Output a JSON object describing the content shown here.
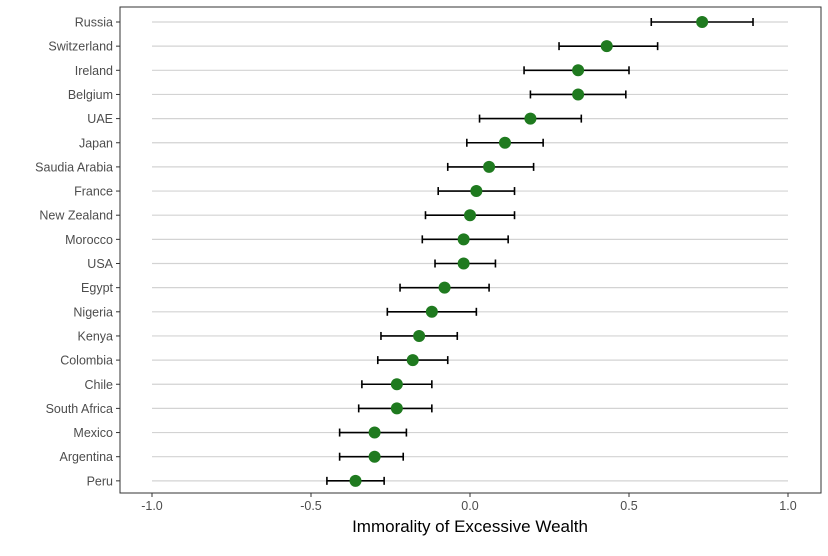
{
  "chart_data": {
    "type": "dot-errorbar",
    "title": "",
    "xlabel": "Immorality of Excessive Wealth",
    "ylabel": "",
    "xlim": [
      -1.1,
      1.07
    ],
    "x_ticks": [
      -1.0,
      -0.5,
      0.0,
      0.5,
      1.0
    ],
    "x_tick_labels": [
      "-1.0",
      "-0.5",
      "0.0",
      "0.5",
      "1.0"
    ],
    "grid": "horizontal major lines",
    "legend": "none",
    "point_color": "#1f7a1f",
    "errorbar_color": "#000000",
    "grid_color": "#d3d3d3",
    "categories": [
      "Russia",
      "Switzerland",
      "Ireland",
      "Belgium",
      "UAE",
      "Japan",
      "Saudia Arabia",
      "France",
      "New Zealand",
      "Morocco",
      "USA",
      "Egypt",
      "Nigeria",
      "Kenya",
      "Colombia",
      "Chile",
      "South Africa",
      "Mexico",
      "Argentina",
      "Peru"
    ],
    "values": [
      0.73,
      0.43,
      0.34,
      0.34,
      0.19,
      0.11,
      0.06,
      0.02,
      0.0,
      -0.02,
      -0.02,
      -0.08,
      -0.12,
      -0.16,
      -0.18,
      -0.23,
      -0.23,
      -0.3,
      -0.3,
      -0.36
    ],
    "lower": [
      0.57,
      0.28,
      0.17,
      0.19,
      0.03,
      -0.01,
      -0.07,
      -0.1,
      -0.14,
      -0.15,
      -0.11,
      -0.22,
      -0.26,
      -0.28,
      -0.29,
      -0.34,
      -0.35,
      -0.41,
      -0.41,
      -0.45
    ],
    "upper": [
      0.89,
      0.59,
      0.5,
      0.49,
      0.35,
      0.23,
      0.2,
      0.14,
      0.14,
      0.12,
      0.08,
      0.06,
      0.02,
      -0.04,
      -0.07,
      -0.12,
      -0.12,
      -0.2,
      -0.21,
      -0.27
    ]
  }
}
